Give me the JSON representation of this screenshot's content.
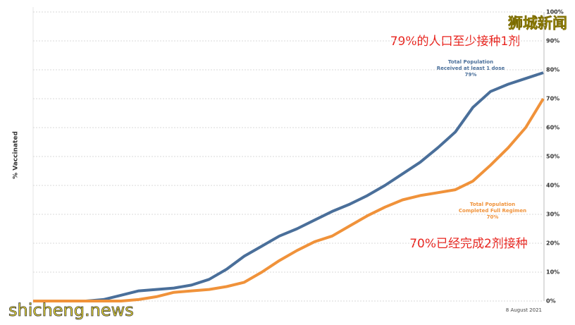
{
  "chart_data": {
    "type": "line",
    "y_label": "% Vaccinated",
    "categories": [
      null,
      null,
      null,
      null,
      null,
      null,
      null,
      null,
      null,
      null,
      null,
      null,
      null,
      null,
      null,
      null,
      null,
      null,
      null,
      null,
      null,
      null,
      null,
      null,
      null,
      null,
      null,
      null,
      null,
      "8 August 2021"
    ],
    "series": [
      {
        "name": "Total Population Received at least 1 dose",
        "color": "#4a6f9a",
        "values": [
          0,
          0,
          0,
          0,
          0.5,
          2,
          3.5,
          4,
          4.5,
          5.5,
          7.5,
          11,
          15.5,
          19,
          22.5,
          25,
          28,
          31,
          33.5,
          36.5,
          40,
          44,
          48,
          53,
          58.5,
          67,
          72.5,
          75,
          77,
          79
        ]
      },
      {
        "name": "Total Population Completed Full Regimen",
        "color": "#f0923a",
        "values": [
          0,
          0,
          0,
          0,
          0,
          0,
          0.5,
          1.5,
          3,
          3.5,
          4,
          5,
          6.5,
          10,
          14,
          17.5,
          20.5,
          22.5,
          26,
          29.5,
          32.5,
          35,
          36.5,
          37.5,
          38.5,
          41.5,
          47,
          53,
          60,
          70
        ]
      }
    ],
    "ylim": [
      0,
      100
    ],
    "yticks": [
      {
        "value": 0,
        "label": "0%"
      },
      {
        "value": 10,
        "label": "10%"
      },
      {
        "value": 20,
        "label": "20%"
      },
      {
        "value": 30,
        "label": "30%"
      },
      {
        "value": 40,
        "label": "40%"
      },
      {
        "value": 50,
        "label": "50%"
      },
      {
        "value": 60,
        "label": "60%"
      },
      {
        "value": 70,
        "label": "70%"
      },
      {
        "value": 80,
        "label": "80%"
      },
      {
        "value": 90,
        "label": "90%"
      },
      {
        "value": 100,
        "label": "100%"
      }
    ],
    "grid": true,
    "annotations": {
      "dose1_label": [
        "Total Population",
        "Received at least 1 dose",
        "79%"
      ],
      "full_label": [
        "Total Population",
        "Completed Full Regimen",
        "70%"
      ],
      "dose1_cn": "79%的人口至少接种1剂",
      "full_cn": "70%已经完成2剂接种"
    },
    "watermarks": {
      "top": "狮城新闻",
      "bottom": "shicheng.news"
    }
  }
}
